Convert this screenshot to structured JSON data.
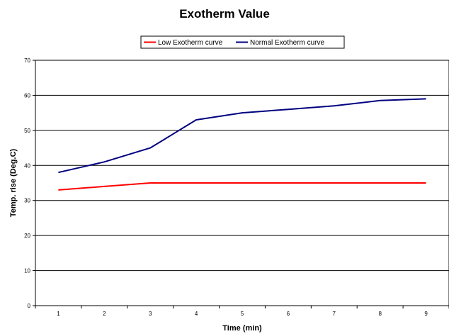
{
  "chart_data": {
    "type": "line",
    "title": "Exotherm Value",
    "xlabel": "Time (min)",
    "ylabel": "Temp. rise (Deg.C)",
    "x": [
      1,
      2,
      3,
      4,
      5,
      6,
      7,
      8,
      9
    ],
    "ylim": [
      0,
      70
    ],
    "yticks": [
      0,
      10,
      20,
      30,
      40,
      50,
      60,
      70
    ],
    "grid": true,
    "legend_position": "top-center",
    "series": [
      {
        "name": "Low Exotherm curve",
        "color": "#ff0000",
        "values": [
          33,
          34,
          35,
          35,
          35,
          35,
          35,
          35,
          35
        ]
      },
      {
        "name": "Normal Exotherm curve",
        "color": "#000080",
        "values": [
          38,
          41,
          45,
          53,
          55,
          56,
          57,
          58.5,
          59
        ]
      }
    ]
  }
}
